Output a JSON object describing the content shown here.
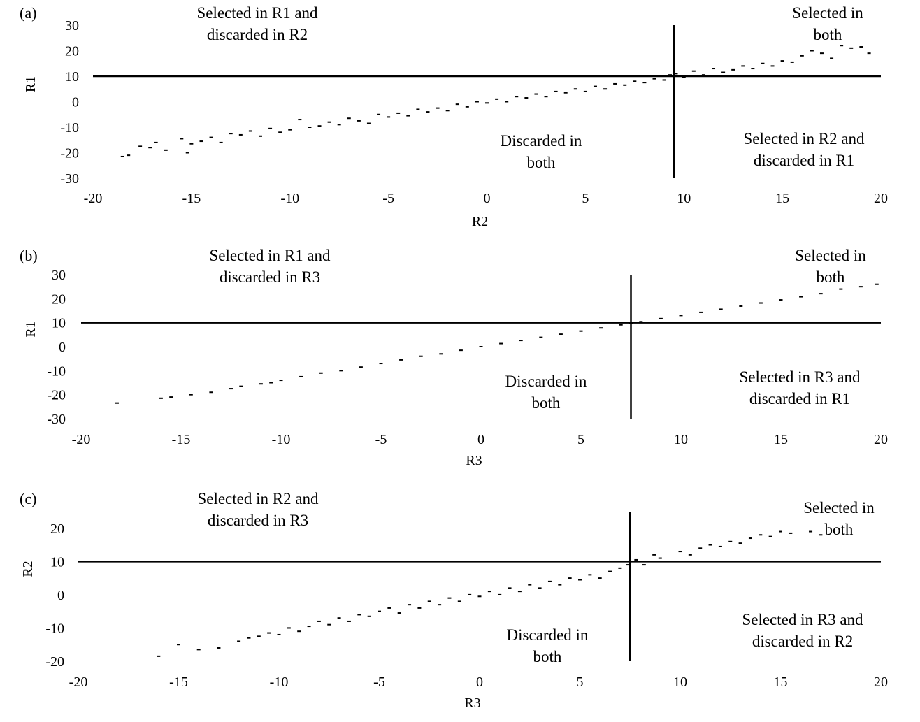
{
  "chart_data": [
    {
      "panel_label": "(a)",
      "type": "scatter",
      "xlabel": "R2",
      "ylabel": "R1",
      "xlim": [
        -20,
        20
      ],
      "ylim": [
        -30,
        30
      ],
      "xticks": [
        "-20",
        "-15",
        "-10",
        "-5",
        "0",
        "5",
        "10",
        "15",
        "20"
      ],
      "xtick_values": [
        -20,
        -15,
        -10,
        -5,
        0,
        5,
        10,
        15,
        20
      ],
      "yticks": [
        "30",
        "20",
        "10",
        "0",
        "-10",
        "-20",
        "-30"
      ],
      "ytick_values": [
        30,
        20,
        10,
        0,
        -10,
        -20,
        -30
      ],
      "threshold_x": 9.5,
      "threshold_y": 10,
      "regions": {
        "top_left": [
          "Selected in R1 and",
          "discarded in R2"
        ],
        "top_right": [
          "Selected in",
          "both"
        ],
        "bottom_center": [
          "Discarded in",
          "both"
        ],
        "bottom_right": [
          "Selected in R2 and",
          "discarded in R1"
        ]
      },
      "grid": false,
      "points": [
        [
          -18.5,
          -21.5
        ],
        [
          -18.2,
          -21
        ],
        [
          -17.6,
          -17.5
        ],
        [
          -17.1,
          -18
        ],
        [
          -16.8,
          -16
        ],
        [
          -16.3,
          -19
        ],
        [
          -15.5,
          -14.5
        ],
        [
          -15.2,
          -20
        ],
        [
          -15.0,
          -16.5
        ],
        [
          -14.5,
          -15.5
        ],
        [
          -14.0,
          -14
        ],
        [
          -13.5,
          -16
        ],
        [
          -13.0,
          -12.5
        ],
        [
          -12.5,
          -13
        ],
        [
          -12.0,
          -11.5
        ],
        [
          -11.5,
          -13.5
        ],
        [
          -11.0,
          -10.5
        ],
        [
          -10.5,
          -12
        ],
        [
          -10.0,
          -11
        ],
        [
          -9.5,
          -7
        ],
        [
          -9.0,
          -10
        ],
        [
          -8.5,
          -9.5
        ],
        [
          -8.0,
          -8
        ],
        [
          -7.5,
          -9
        ],
        [
          -7.0,
          -6.5
        ],
        [
          -6.5,
          -7.5
        ],
        [
          -6.0,
          -8.5
        ],
        [
          -5.5,
          -5
        ],
        [
          -5.0,
          -6
        ],
        [
          -4.5,
          -4.5
        ],
        [
          -4.0,
          -5.5
        ],
        [
          -3.5,
          -3
        ],
        [
          -3.0,
          -4
        ],
        [
          -2.5,
          -2.5
        ],
        [
          -2.0,
          -3.5
        ],
        [
          -1.5,
          -1
        ],
        [
          -1.0,
          -2
        ],
        [
          -0.5,
          0
        ],
        [
          0.0,
          -0.5
        ],
        [
          0.5,
          1
        ],
        [
          1.0,
          0
        ],
        [
          1.5,
          2
        ],
        [
          2.0,
          1.5
        ],
        [
          2.5,
          3
        ],
        [
          3.0,
          2
        ],
        [
          3.5,
          4
        ],
        [
          4.0,
          3.5
        ],
        [
          4.5,
          5
        ],
        [
          5.0,
          4
        ],
        [
          5.5,
          6
        ],
        [
          6.0,
          5
        ],
        [
          6.5,
          7
        ],
        [
          7.0,
          6.5
        ],
        [
          7.5,
          8
        ],
        [
          8.0,
          7.5
        ],
        [
          8.5,
          9
        ],
        [
          9.0,
          8.5
        ],
        [
          9.3,
          10.5
        ],
        [
          9.6,
          11
        ],
        [
          10.0,
          9.5
        ],
        [
          10.5,
          12
        ],
        [
          11.0,
          10.5
        ],
        [
          11.5,
          13
        ],
        [
          12.0,
          11.5
        ],
        [
          12.5,
          12.5
        ],
        [
          13.0,
          14
        ],
        [
          13.5,
          13
        ],
        [
          14.0,
          15
        ],
        [
          14.5,
          14
        ],
        [
          15.0,
          16
        ],
        [
          15.5,
          15.5
        ],
        [
          16.0,
          18
        ],
        [
          16.5,
          20
        ],
        [
          17.0,
          19
        ],
        [
          17.5,
          17
        ],
        [
          18.0,
          22
        ],
        [
          18.5,
          21
        ],
        [
          19.0,
          21.5
        ],
        [
          19.4,
          19
        ]
      ]
    },
    {
      "panel_label": "(b)",
      "type": "scatter",
      "xlabel": "R3",
      "ylabel": "R1",
      "xlim": [
        -20,
        20
      ],
      "ylim": [
        -30,
        30
      ],
      "xticks": [
        "-20",
        "-15",
        "-10",
        "-5",
        "0",
        "5",
        "10",
        "15",
        "20"
      ],
      "xtick_values": [
        -20,
        -15,
        -10,
        -5,
        0,
        5,
        10,
        15,
        20
      ],
      "yticks": [
        "30",
        "20",
        "10",
        "0",
        "-10",
        "-20",
        "-30"
      ],
      "ytick_values": [
        30,
        20,
        10,
        0,
        -10,
        -20,
        -30
      ],
      "threshold_x": 7.5,
      "threshold_y": 10,
      "regions": {
        "top_left": [
          "Selected in R1 and",
          "discarded in R3"
        ],
        "top_right": [
          "Selected in",
          "both"
        ],
        "bottom_center": [
          "Discarded in",
          "both"
        ],
        "bottom_right": [
          "Selected in R3 and",
          "discarded in R1"
        ]
      },
      "grid": false,
      "points": [
        [
          -18.2,
          -23.5
        ],
        [
          -16.0,
          -21.5
        ],
        [
          -15.5,
          -21
        ],
        [
          -14.5,
          -20
        ],
        [
          -13.5,
          -19
        ],
        [
          -12.5,
          -17.5
        ],
        [
          -12.0,
          -16.5
        ],
        [
          -11.0,
          -15.5
        ],
        [
          -10.5,
          -15
        ],
        [
          -10.0,
          -14
        ],
        [
          -9.0,
          -12.5
        ],
        [
          -8.0,
          -11
        ],
        [
          -7.0,
          -10
        ],
        [
          -6.0,
          -8.5
        ],
        [
          -5.0,
          -7
        ],
        [
          -4.0,
          -5.5
        ],
        [
          -3.0,
          -4
        ],
        [
          -2.0,
          -3
        ],
        [
          -1.0,
          -1.5
        ],
        [
          0.0,
          0
        ],
        [
          1.0,
          1.3
        ],
        [
          2.0,
          2.6
        ],
        [
          3.0,
          3.9
        ],
        [
          4.0,
          5.2
        ],
        [
          5.0,
          6.5
        ],
        [
          6.0,
          7.8
        ],
        [
          7.0,
          9.1
        ],
        [
          7.5,
          9.8
        ],
        [
          8.0,
          10.4
        ],
        [
          9.0,
          11.7
        ],
        [
          10.0,
          13
        ],
        [
          11.0,
          14.3
        ],
        [
          12.0,
          15.6
        ],
        [
          13.0,
          16.9
        ],
        [
          14.0,
          18.2
        ],
        [
          15.0,
          19.5
        ],
        [
          16.0,
          20.8
        ],
        [
          17.0,
          22.1
        ],
        [
          18.0,
          24
        ],
        [
          19.0,
          25
        ],
        [
          19.8,
          26
        ]
      ]
    },
    {
      "panel_label": "(c)",
      "type": "scatter",
      "xlabel": "R3",
      "ylabel": "R2",
      "xlim": [
        -20,
        20
      ],
      "ylim": [
        -20,
        25
      ],
      "xticks": [
        "-20",
        "-15",
        "-10",
        "-5",
        "0",
        "5",
        "10",
        "15",
        "20"
      ],
      "xtick_values": [
        -20,
        -15,
        -10,
        -5,
        0,
        5,
        10,
        15,
        20
      ],
      "yticks": [
        "20",
        "10",
        "0",
        "-10",
        "-20"
      ],
      "ytick_values": [
        20,
        10,
        0,
        -10,
        -20
      ],
      "threshold_x": 7.5,
      "threshold_y": 10,
      "regions": {
        "top_left": [
          "Selected in R2 and",
          "discarded in R3"
        ],
        "top_right": [
          "Selected in",
          "both"
        ],
        "bottom_center": [
          "Discarded in",
          "both"
        ],
        "bottom_right": [
          "Selected in R3 and",
          "discarded in  R2"
        ]
      },
      "grid": false,
      "points": [
        [
          -16.0,
          -18.5
        ],
        [
          -15.0,
          -15
        ],
        [
          -14.0,
          -16.5
        ],
        [
          -13.0,
          -16
        ],
        [
          -12.0,
          -14
        ],
        [
          -11.5,
          -13
        ],
        [
          -11.0,
          -12.5
        ],
        [
          -10.5,
          -11.5
        ],
        [
          -10.0,
          -12
        ],
        [
          -9.5,
          -10
        ],
        [
          -9.0,
          -11
        ],
        [
          -8.5,
          -9.5
        ],
        [
          -8.0,
          -8
        ],
        [
          -7.5,
          -9
        ],
        [
          -7.0,
          -7
        ],
        [
          -6.5,
          -8
        ],
        [
          -6.0,
          -6
        ],
        [
          -5.5,
          -6.5
        ],
        [
          -5.0,
          -5
        ],
        [
          -4.5,
          -4
        ],
        [
          -4.0,
          -5.5
        ],
        [
          -3.5,
          -3
        ],
        [
          -3.0,
          -4
        ],
        [
          -2.5,
          -2
        ],
        [
          -2.0,
          -3
        ],
        [
          -1.5,
          -1
        ],
        [
          -1.0,
          -2
        ],
        [
          -0.5,
          0
        ],
        [
          0.0,
          -0.5
        ],
        [
          0.5,
          1
        ],
        [
          1.0,
          0
        ],
        [
          1.5,
          2
        ],
        [
          2.0,
          1
        ],
        [
          2.5,
          3
        ],
        [
          3.0,
          2
        ],
        [
          3.5,
          4
        ],
        [
          4.0,
          3
        ],
        [
          4.5,
          5
        ],
        [
          5.0,
          4.5
        ],
        [
          5.5,
          6
        ],
        [
          6.0,
          5
        ],
        [
          6.5,
          7
        ],
        [
          7.0,
          8
        ],
        [
          7.4,
          9
        ],
        [
          7.8,
          10.5
        ],
        [
          8.2,
          9
        ],
        [
          8.7,
          12
        ],
        [
          9.0,
          11
        ],
        [
          9.5,
          10
        ],
        [
          10.0,
          13
        ],
        [
          10.5,
          12
        ],
        [
          11.0,
          14
        ],
        [
          11.5,
          15
        ],
        [
          12.0,
          14.5
        ],
        [
          12.5,
          16
        ],
        [
          13.0,
          15.5
        ],
        [
          13.5,
          17
        ],
        [
          14.0,
          18
        ],
        [
          14.5,
          17.5
        ],
        [
          15.0,
          19
        ],
        [
          15.5,
          18.5
        ],
        [
          16.5,
          19
        ],
        [
          17.0,
          18
        ]
      ]
    }
  ]
}
